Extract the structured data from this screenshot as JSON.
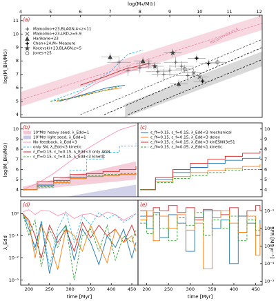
{
  "chart_data": [
    {
      "type": "line",
      "label": "(a)",
      "xlabel": "log(M⁎/M⊙)",
      "ylabel": "log(M_BH/M⊙)",
      "xaxis": "top",
      "yaxis": "left",
      "legend": "upper left",
      "xlim": [
        4,
        12.1
      ],
      "xticks": [
        4,
        5,
        6,
        7,
        8,
        9,
        10,
        11,
        12
      ],
      "ylim": [
        3.8,
        11.4
      ],
      "yticks": [
        4,
        5,
        6,
        7,
        8,
        9,
        10,
        11
      ],
      "annotations": [
        "Pacucci+23,z>4"
      ],
      "bands": [
        {
          "color": "#f6d0da",
          "x": [
            4,
            12.1
          ],
          "lower": [
            4.6,
            10.3
          ],
          "upper": [
            5.7,
            11.4
          ]
        },
        {
          "color": "#d2d2d2",
          "x": [
            7.5,
            12.1
          ],
          "lower": [
            3.8,
            7.6
          ],
          "upper": [
            4.8,
            8.7
          ]
        }
      ],
      "series": [
        {
          "color": "#ee8aa6",
          "dash": true,
          "x": [
            4,
            12.1
          ],
          "values": [
            5.1,
            10.8
          ]
        },
        {
          "color": "#222222",
          "dash": true,
          "x": [
            6.8,
            12.1
          ],
          "values": [
            4.0,
            9.0
          ]
        },
        {
          "color": "#222222",
          "dash": true,
          "x": [
            7.6,
            12.1
          ],
          "values": [
            4.0,
            8.1
          ]
        },
        {
          "color": "#666666",
          "dash": true,
          "x": [
            6.0,
            12.1
          ],
          "values": [
            4.0,
            9.6
          ]
        },
        {
          "color": "#33bbee",
          "dash": true,
          "x": [
            5.0,
            6.0,
            7.0,
            7.6,
            8.1
          ],
          "values": [
            5.0,
            5.8,
            7.2,
            8.5,
            8.8
          ]
        },
        {
          "color": "#ff8fb0",
          "x": [
            5.5,
            6.5,
            7.5,
            8.5
          ],
          "values": [
            5.0,
            6.3,
            7.2,
            7.7
          ]
        },
        {
          "color": "#d62728",
          "x": [
            6.0,
            6.8,
            7.5,
            8.3
          ],
          "values": [
            6.2,
            6.8,
            7.4,
            7.8
          ]
        },
        {
          "color": "#ff7f0e",
          "x": [
            5.2,
            6.0,
            6.8,
            7.4
          ],
          "values": [
            5.0,
            5.4,
            5.8,
            6.0
          ]
        },
        {
          "color": "#1f77b4",
          "x": [
            5.3,
            6.1,
            6.9,
            7.5
          ],
          "values": [
            5.0,
            5.5,
            6.0,
            6.2
          ]
        },
        {
          "color": "#2ca02c",
          "dash": true,
          "x": [
            5.0,
            5.9,
            6.8,
            7.3
          ],
          "values": [
            5.0,
            5.3,
            5.8,
            6.1
          ]
        }
      ],
      "points": [
        {
          "name": "Mainolino+23,BLAGN,4<z<11",
          "color": "#555555",
          "marker": "plus",
          "x": [
            7.3,
            7.6,
            8.0,
            8.3,
            8.6,
            8.8,
            9.0,
            9.2,
            9.4,
            9.6
          ],
          "values": [
            7.9,
            7.3,
            7.5,
            7.8,
            7.2,
            7.0,
            7.3,
            7.9,
            7.6,
            6.9
          ],
          "xerr": 0.4,
          "yerr": 0.4
        },
        {
          "name": "Mainolino+23,LRD,z=5.9",
          "color": "#555555",
          "marker": "x",
          "x": [
            9.8,
            10.0
          ],
          "values": [
            7.1,
            6.8
          ],
          "xerr": 0.3,
          "yerr": 0.3
        },
        {
          "name": "Harikane+23",
          "color": "#444444",
          "marker": "triangle",
          "x": [
            8.1,
            9.3,
            7.0
          ],
          "values": [
            8.0,
            6.3,
            8.3
          ],
          "xerr": 0.3,
          "yerr": 0.3
        },
        {
          "name": "Chen+24,M⁎ Measure",
          "color": "#111111",
          "marker": "bold-plus",
          "x": [
            10.3,
            10.1,
            9.9
          ],
          "values": [
            7.8,
            6.5,
            8.2
          ],
          "xerr": 0.3,
          "yerr": 0.3
        },
        {
          "name": "Kocevski+23,BLAGN,z>5",
          "color": "#444444",
          "marker": "star",
          "x": [
            8.5,
            9.1
          ],
          "values": [
            7.6,
            8.6
          ],
          "xerr": 0.3,
          "yerr": 0.3
        },
        {
          "name": "Jones+25",
          "color": "#666666",
          "marker": "circle",
          "x": [
            9.5,
            10.6
          ],
          "values": [
            7.4,
            7.9
          ],
          "xerr": 0.3,
          "yerr": 0.3
        }
      ]
    },
    {
      "type": "line",
      "label": "(b)",
      "ylabel": "log(M_BH/M⊙)",
      "yaxis": "left",
      "legend": "upper left",
      "xlim": [
        180,
        465
      ],
      "ylim": [
        3.3,
        10.6
      ],
      "yticks": [
        4,
        5,
        6,
        7,
        8,
        9,
        10
      ],
      "x": [
        185,
        220,
        260,
        300,
        340,
        380,
        420,
        460
      ],
      "bands": [
        {
          "name": "10⁴M⊙ heavy seed, λ_Edd=1",
          "color": "#f4c6d4",
          "x": [
            185,
            460
          ],
          "lower": [
            3.9,
            5.0
          ],
          "upper": [
            4.3,
            6.8
          ]
        },
        {
          "name": "10³M⊙ light seed, λ_Edd=1",
          "color": "#c9c9e6",
          "x": [
            290,
            460
          ],
          "lower": [
            3.3,
            3.3
          ],
          "upper": [
            3.3,
            4.5
          ]
        }
      ],
      "series": [
        {
          "name": "No feedback, λ_Edd<3",
          "color": "#ff8fb0",
          "values": [
            4.0,
            4.6,
            5.6,
            6.8,
            8.0,
            9.0,
            9.9,
            10.4
          ]
        },
        {
          "name": "only SN, λ_Edd<3 kinetic",
          "color": "#33bbee",
          "dash": true,
          "step": true,
          "values": [
            4.0,
            4.2,
            4.6,
            5.9,
            7.0,
            7.7,
            8.3,
            8.6
          ]
        },
        {
          "name": "ε_ff=0.15, ε_f=0.15, λ_Edd<3 only AGN",
          "color": "#d62728",
          "step": true,
          "values": [
            4.0,
            4.8,
            5.2,
            5.5,
            5.6,
            5.8,
            6.0,
            6.3
          ]
        },
        {
          "name": "ε_ff=0.15, ε_f=0.15, λ_Edd<3 kinetic",
          "color": "#2ca02c",
          "dash": true,
          "step": true,
          "values": [
            4.0,
            4.3,
            4.8,
            5.2,
            5.4,
            5.5,
            5.6,
            5.7
          ]
        },
        {
          "color": "#1f77b4",
          "step": true,
          "values": [
            4.0,
            4.4,
            4.9,
            5.2,
            5.3,
            5.4,
            5.5,
            5.6
          ]
        },
        {
          "color": "#ff7f0e",
          "step": true,
          "values": [
            4.0,
            4.5,
            4.7,
            5.1,
            5.3,
            5.4,
            5.5,
            5.7
          ]
        }
      ]
    },
    {
      "type": "line",
      "label": "(c)",
      "yaxis": "right",
      "legend": "upper left",
      "xlim": [
        180,
        465
      ],
      "ylim": [
        3.3,
        10.6
      ],
      "yticks": [
        4,
        5,
        6,
        7,
        8,
        9,
        10
      ],
      "x": [
        185,
        220,
        260,
        300,
        340,
        380,
        420,
        460
      ],
      "series": [
        {
          "name": "ε_ff=0.15, ε_f=0.15, λ_Edd<3 mechanical",
          "color": "#1f77b4",
          "step": true,
          "values": [
            4.0,
            5.0,
            5.7,
            6.2,
            6.6,
            6.9,
            7.1,
            7.3
          ]
        },
        {
          "name": "ε_ff=0.15, ε_f=0.15, λ_Edd<3 delay",
          "color": "#ff7f0e",
          "step": true,
          "values": [
            4.0,
            4.8,
            5.3,
            5.7,
            5.9,
            6.1,
            6.3,
            6.5
          ]
        },
        {
          "name": "ε_ff=0.15, ε_f=0.15, λ_Edd<3 kinESNII3e51",
          "color": "#d62728",
          "step": true,
          "values": [
            4.0,
            5.2,
            6.0,
            6.6,
            7.0,
            7.3,
            7.6,
            7.8
          ]
        },
        {
          "name": "ε_ff=0.15, ε_f=0.05, λ_Edd<1 kinetic",
          "color": "#2ca02c",
          "dash": true,
          "step": true,
          "values": [
            4.0,
            4.7,
            5.1,
            5.4,
            5.7,
            5.9,
            6.0,
            6.2
          ]
        }
      ]
    },
    {
      "type": "line",
      "label": "(d)",
      "xlabel": "time [Myr]",
      "ylabel": "λ_Edd",
      "xaxis": "bottom",
      "yaxis": "left",
      "yscale": "log",
      "xlim": [
        180,
        465
      ],
      "xticks": [
        200,
        250,
        300,
        350,
        400,
        450
      ],
      "ylim": [
        0.0006,
        4
      ],
      "yticks": [
        {
          "value": 0.001,
          "label": "10⁻³"
        },
        {
          "value": 0.01,
          "label": "10⁻²"
        },
        {
          "value": 0.1,
          "label": "10⁻¹"
        },
        {
          "value": 1,
          "label": "10⁰"
        }
      ],
      "x": [
        185,
        200,
        215,
        230,
        250,
        270,
        290,
        310,
        330,
        350,
        370,
        390,
        410,
        430,
        450,
        460
      ],
      "series": [
        {
          "color": "#ff8fb0",
          "values": [
            1.2,
            1.5,
            0.9,
            1.4,
            1.3,
            0.8,
            1.1,
            0.6,
            0.9,
            1.0,
            0.7,
            1.2,
            0.9,
            0.5,
            0.8,
            1.0
          ]
        },
        {
          "color": "#33bbee",
          "dash": true,
          "values": [
            1.0,
            0.3,
            0.02,
            0.5,
            0.004,
            0.2,
            1.2,
            0.05,
            0.8,
            0.3,
            1.1,
            0.6,
            0.9,
            0.4,
            0.7,
            1.0
          ]
        },
        {
          "color": "#d62728",
          "values": [
            1.0,
            0.5,
            0.1,
            0.01,
            0.3,
            0.05,
            0.2,
            0.02,
            0.4,
            0.08,
            0.3,
            0.1,
            0.2,
            0.05,
            0.3,
            0.1
          ]
        },
        {
          "color": "#1f77b4",
          "values": [
            1.0,
            0.2,
            0.03,
            0.4,
            0.002,
            0.1,
            0.3,
            0.008,
            0.2,
            0.05,
            0.005,
            0.1,
            0.03,
            0.2,
            0.01,
            0.05
          ]
        },
        {
          "color": "#ff7f0e",
          "values": [
            1.0,
            0.4,
            0.01,
            0.3,
            0.05,
            0.003,
            0.2,
            0.1,
            0.02,
            0.3,
            0.04,
            0.006,
            0.2,
            0.05,
            0.1,
            0.02
          ]
        },
        {
          "color": "#2ca02c",
          "dash": true,
          "values": [
            1.0,
            0.1,
            0.5,
            0.004,
            0.2,
            0.03,
            0.3,
            0.001,
            0.1,
            0.2,
            0.02,
            0.3,
            0.008,
            0.1,
            0.05,
            0.2
          ]
        }
      ]
    },
    {
      "type": "line",
      "label": "(e)",
      "xlabel": "time [Myr]",
      "ylabel": "SFR [M⊙yr⁻¹]",
      "xaxis": "bottom",
      "yaxis": "right",
      "yscale": "log",
      "xlim": [
        180,
        465
      ],
      "xticks": [
        200,
        250,
        300,
        350,
        400,
        450
      ],
      "ylim": [
        6e-06,
        0.4
      ],
      "yticks": [
        {
          "value": 1e-05,
          "label": "10⁻⁵"
        },
        {
          "value": 0.0001,
          "label": "10⁻⁴"
        },
        {
          "value": 0.001,
          "label": "10⁻³"
        },
        {
          "value": 0.01,
          "label": "10⁻²"
        },
        {
          "value": 0.1,
          "label": "10⁻¹"
        }
      ],
      "x": [
        185,
        200,
        215,
        230,
        250,
        270,
        290,
        310,
        330,
        350,
        370,
        390,
        410,
        430,
        450,
        460
      ],
      "series": [
        {
          "color": "#d62728",
          "step": true,
          "values": [
            0.1,
            0.05,
            0.15,
            0.1,
            0.2,
            0.08,
            0.15,
            0.03,
            0.12,
            0.1,
            0.06,
            0.15,
            0.05,
            0.1,
            0.2,
            0.1
          ]
        },
        {
          "color": "#1f77b4",
          "step": true,
          "values": [
            0.05,
            0.01,
            0.08,
            0.003,
            0.06,
            0.02,
            0.0005,
            0.04,
            0.1,
            0.01,
            0.03,
            0.0001,
            0.05,
            0.02,
            0.004,
            0.03
          ]
        },
        {
          "color": "#ff7f0e",
          "step": true,
          "values": [
            0.03,
            0.1,
            0.002,
            0.05,
            0.01,
            0.06,
            0.008,
            0.02,
            5e-05,
            0.04,
            0.1,
            0.02,
            0.006,
            0.05,
            0.0003,
            0.02
          ]
        },
        {
          "color": "#2ca02c",
          "dash": true,
          "step": true,
          "values": [
            0.02,
            0.005,
            0.06,
            0.01,
            0.002,
            0.04,
            0.015,
            0.08,
            0.004,
            0.03,
            0.01,
            0.05,
            0.002,
            0.03,
            0.008,
            0.01
          ]
        }
      ]
    }
  ]
}
